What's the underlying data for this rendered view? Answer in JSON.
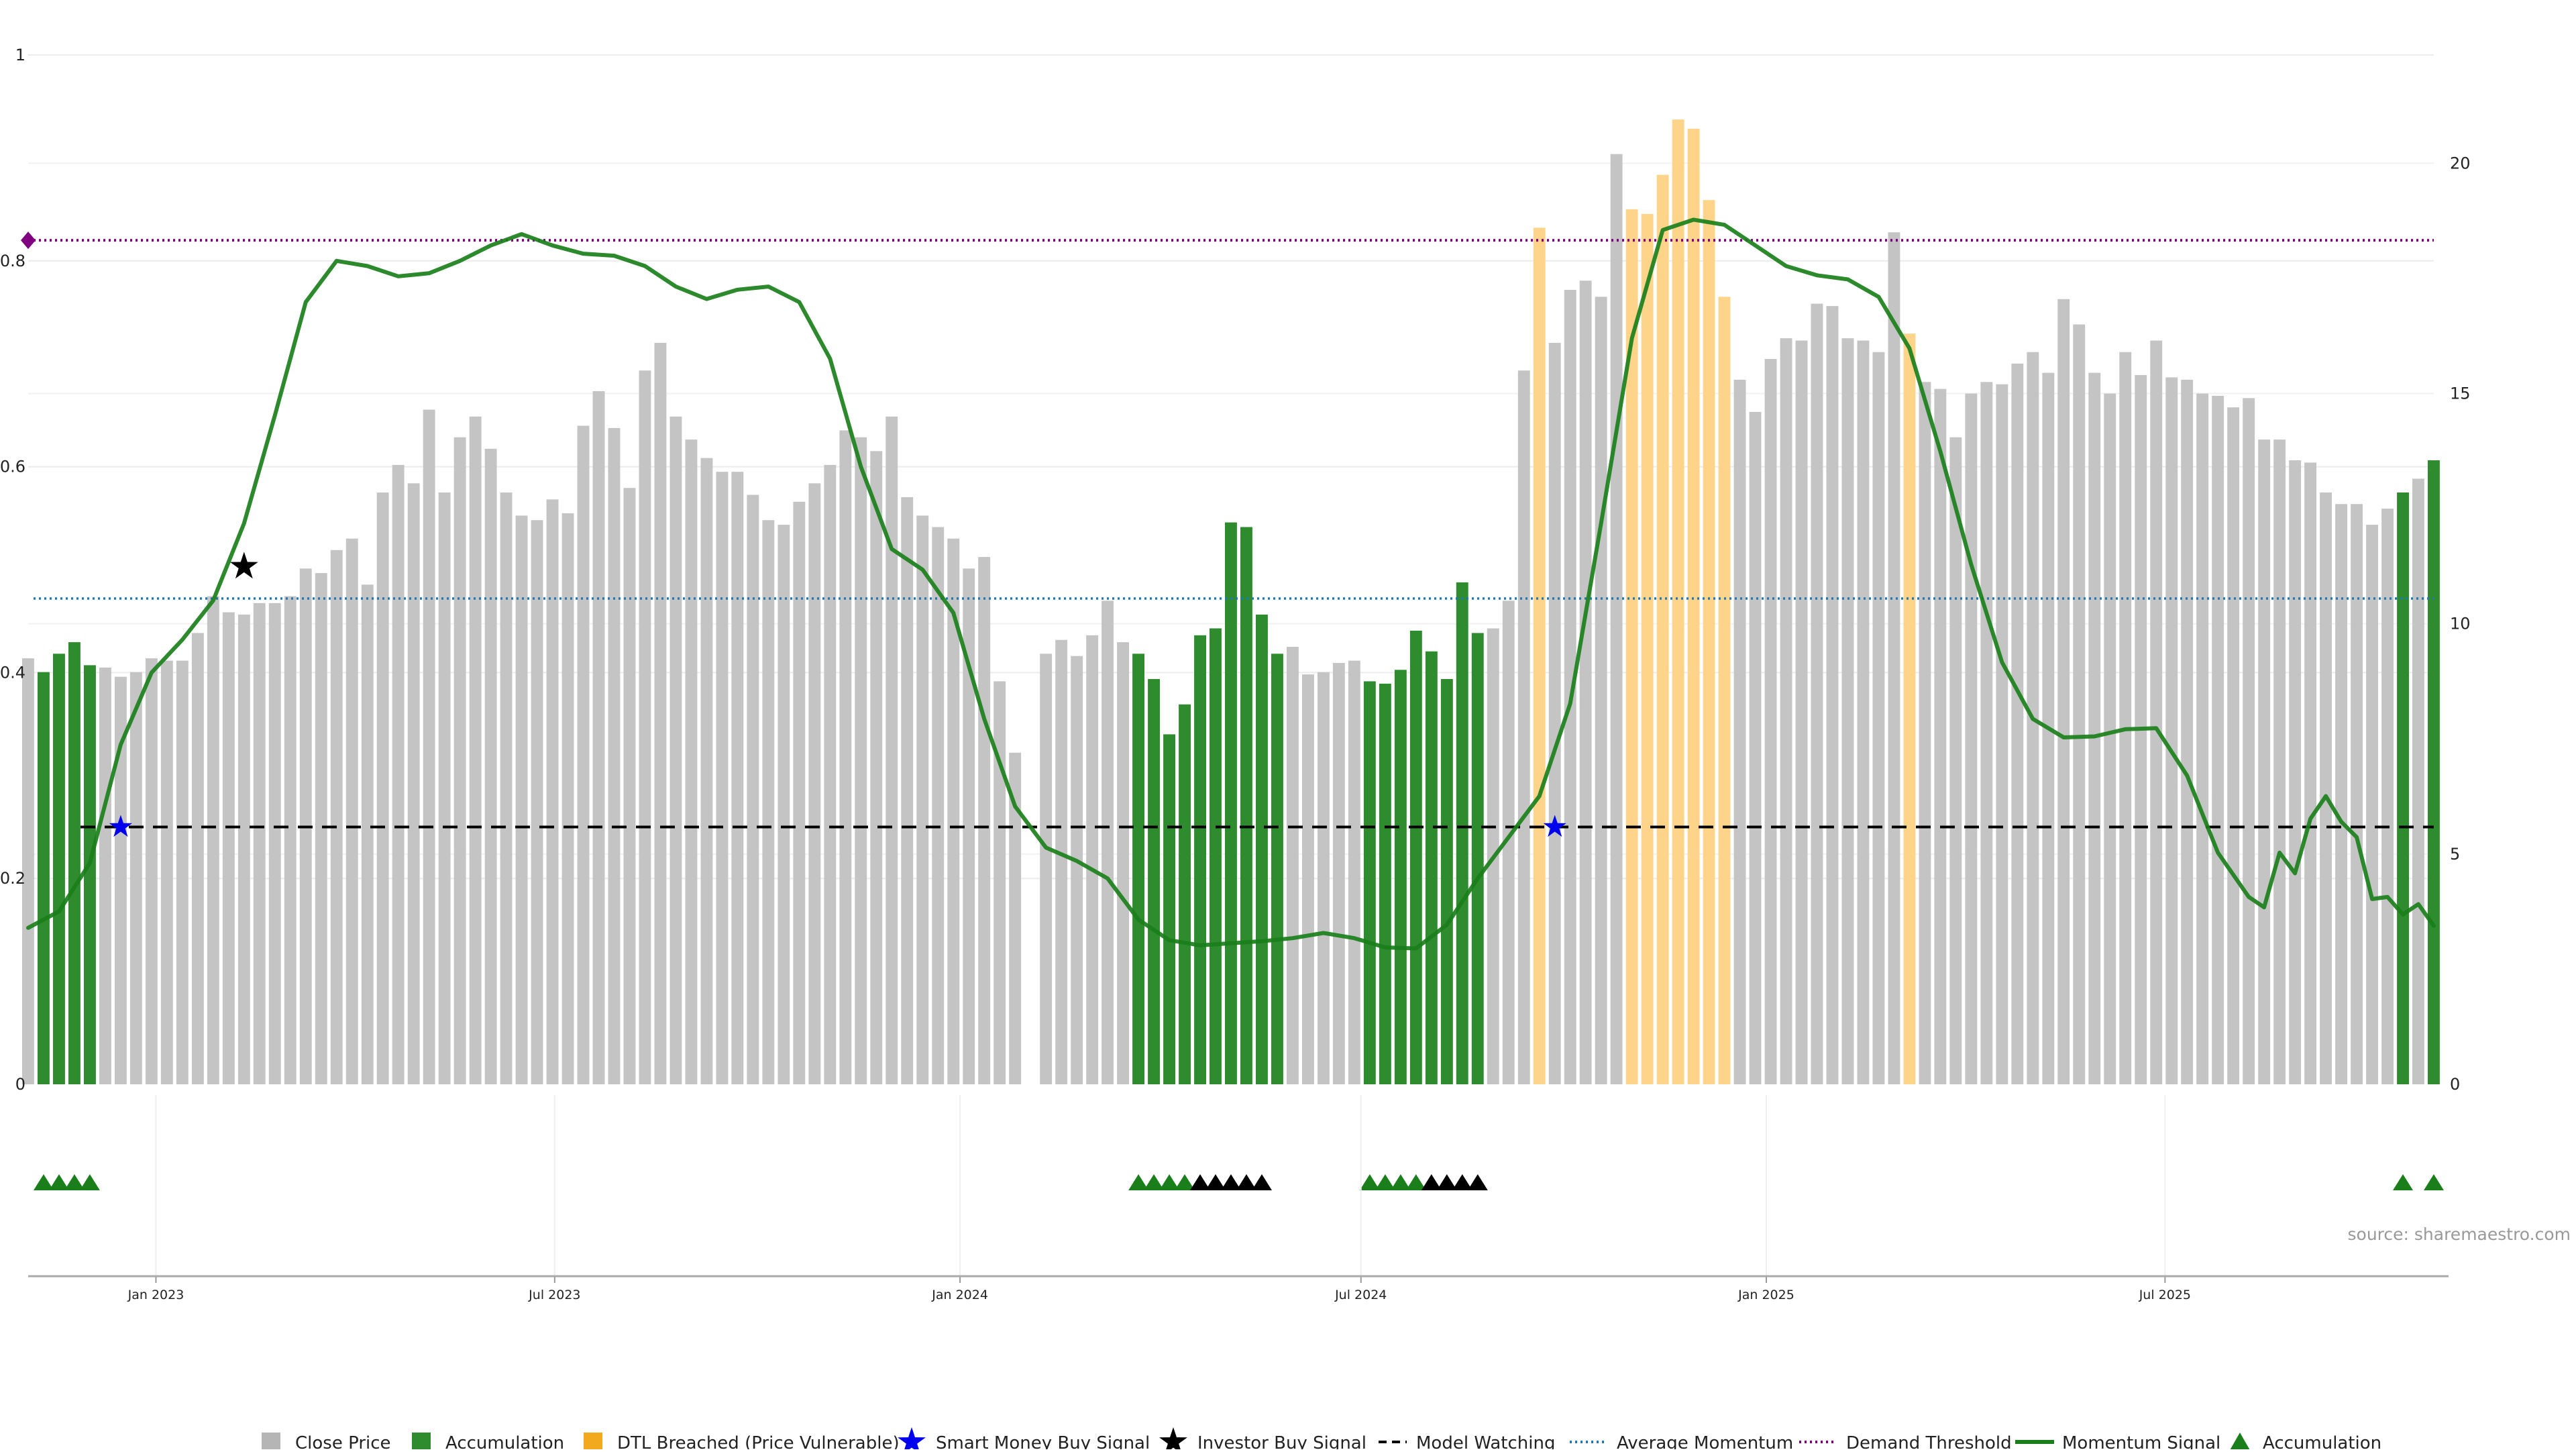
{
  "source": "source: sharemaestro.com",
  "chart_data": {
    "type": "bar",
    "left_axis": {
      "ticks": [
        "0",
        "0.2",
        "0.4",
        "0.6",
        "0.8",
        "1"
      ],
      "values": [
        0,
        0.2,
        0.4,
        0.6,
        0.8,
        1.0
      ],
      "ylim": [
        0,
        1
      ]
    },
    "right_axis": {
      "ticks": [
        "0",
        "5",
        "10",
        "15",
        "20"
      ],
      "values": [
        0,
        5,
        10,
        15,
        20
      ],
      "ylim": [
        0,
        22.35
      ]
    },
    "x_axis": {
      "ticks": [
        "Jan 2023",
        "Jul 2023",
        "Jan 2024",
        "Jul 2024",
        "Jan 2025",
        "Jul 2025"
      ],
      "tick_dates": [
        "2023-01-01",
        "2023-07-01",
        "2024-01-01",
        "2024-07-01",
        "2025-01-01",
        "2025-07-01"
      ],
      "start": "2022-11-04",
      "end": "2025-10-31"
    },
    "bars": {
      "start": "2022-11-04",
      "interval_days": 7,
      "values": [
        9.25,
        8.95,
        9.35,
        9.6,
        9.1,
        9.05,
        8.85,
        8.95,
        9.25,
        9.2,
        9.2,
        9.8,
        10.6,
        10.25,
        10.2,
        10.45,
        10.45,
        10.6,
        11.2,
        11.1,
        11.6,
        11.85,
        10.85,
        12.85,
        13.45,
        13.05,
        14.65,
        12.85,
        14.05,
        14.5,
        13.8,
        12.85,
        12.35,
        12.25,
        12.7,
        12.4,
        14.3,
        15.05,
        14.25,
        12.95,
        15.5,
        16.1,
        14.5,
        14.0,
        13.6,
        13.3,
        13.3,
        12.8,
        12.25,
        12.15,
        12.65,
        13.05,
        13.45,
        14.2,
        14.05,
        13.75,
        14.5,
        12.75,
        12.35,
        12.1,
        11.85,
        11.2,
        11.45,
        8.75,
        7.2,
        0,
        9.35,
        9.65,
        9.3,
        9.75,
        10.5,
        9.6,
        9.35,
        8.8,
        7.6,
        8.25,
        9.75,
        9.9,
        12.2,
        12.1,
        10.2,
        9.35,
        9.5,
        8.9,
        8.95,
        9.15,
        9.2,
        8.75,
        8.7,
        9.0,
        9.85,
        9.4,
        8.8,
        10.9,
        9.8,
        9.9,
        10.5,
        15.5,
        18.6,
        16.1,
        17.25,
        17.45,
        17.1,
        20.2,
        19.0,
        18.9,
        19.75,
        20.95,
        20.75,
        19.2,
        17.1,
        15.3,
        14.6,
        15.75,
        16.2,
        16.15,
        16.95,
        16.9,
        16.2,
        16.15,
        15.9,
        18.5,
        16.3,
        15.25,
        15.1,
        14.05,
        15.0,
        15.25,
        15.2,
        15.65,
        15.9,
        15.45,
        17.05,
        16.5,
        15.45,
        15.0,
        15.9,
        15.4,
        16.15,
        15.35,
        15.3,
        15.0,
        14.95,
        14.7,
        14.9,
        14.0,
        14.0,
        13.55,
        13.5,
        12.85,
        12.6,
        12.6,
        12.15,
        12.5,
        12.85,
        13.15,
        13.55
      ],
      "accumulation_indices": [
        1,
        2,
        3,
        4,
        72,
        73,
        74,
        75,
        76,
        77,
        78,
        79,
        80,
        81,
        87,
        88,
        89,
        90,
        91,
        92,
        93,
        94,
        154,
        156
      ],
      "dtl_breached_indices": [
        98,
        104,
        105,
        106,
        107,
        108,
        109,
        110,
        122
      ],
      "missing_indices": [
        65
      ]
    },
    "momentum_signal": {
      "points": [
        [
          "2022-11-04",
          0.152
        ],
        [
          "2022-11-18",
          0.168
        ],
        [
          "2022-12-02",
          0.215
        ],
        [
          "2022-12-16",
          0.33
        ],
        [
          "2022-12-30",
          0.4
        ],
        [
          "2023-01-13",
          0.432
        ],
        [
          "2023-01-27",
          0.47
        ],
        [
          "2023-02-10",
          0.545
        ],
        [
          "2023-02-24",
          0.65
        ],
        [
          "2023-03-10",
          0.76
        ],
        [
          "2023-03-24",
          0.8
        ],
        [
          "2023-04-07",
          0.795
        ],
        [
          "2023-04-21",
          0.785
        ],
        [
          "2023-05-05",
          0.788
        ],
        [
          "2023-05-19",
          0.8
        ],
        [
          "2023-06-02",
          0.815
        ],
        [
          "2023-06-16",
          0.826
        ],
        [
          "2023-06-30",
          0.815
        ],
        [
          "2023-07-14",
          0.807
        ],
        [
          "2023-07-28",
          0.805
        ],
        [
          "2023-08-11",
          0.795
        ],
        [
          "2023-08-25",
          0.775
        ],
        [
          "2023-09-08",
          0.763
        ],
        [
          "2023-09-22",
          0.772
        ],
        [
          "2023-10-06",
          0.775
        ],
        [
          "2023-10-20",
          0.76
        ],
        [
          "2023-11-03",
          0.705
        ],
        [
          "2023-11-17",
          0.6
        ],
        [
          "2023-12-01",
          0.52
        ],
        [
          "2023-12-15",
          0.5
        ],
        [
          "2023-12-29",
          0.458
        ],
        [
          "2024-01-12",
          0.355
        ],
        [
          "2024-01-26",
          0.27
        ],
        [
          "2024-02-09",
          0.23
        ],
        [
          "2024-02-23",
          0.217
        ],
        [
          "2024-03-08",
          0.2
        ],
        [
          "2024-03-22",
          0.16
        ],
        [
          "2024-04-05",
          0.14
        ],
        [
          "2024-04-19",
          0.135
        ],
        [
          "2024-05-03",
          0.137
        ],
        [
          "2024-05-17",
          0.139
        ],
        [
          "2024-05-31",
          0.142
        ],
        [
          "2024-06-14",
          0.147
        ],
        [
          "2024-06-28",
          0.142
        ],
        [
          "2024-07-12",
          0.133
        ],
        [
          "2024-07-26",
          0.132
        ],
        [
          "2024-08-09",
          0.155
        ],
        [
          "2024-08-23",
          0.2
        ],
        [
          "2024-09-06",
          0.24
        ],
        [
          "2024-09-20",
          0.28
        ],
        [
          "2024-10-04",
          0.37
        ],
        [
          "2024-10-18",
          0.545
        ],
        [
          "2024-11-01",
          0.725
        ],
        [
          "2024-11-15",
          0.83
        ],
        [
          "2024-11-29",
          0.84
        ],
        [
          "2024-12-13",
          0.835
        ],
        [
          "2024-12-27",
          0.815
        ],
        [
          "2025-01-10",
          0.795
        ],
        [
          "2025-01-24",
          0.786
        ],
        [
          "2025-02-07",
          0.782
        ],
        [
          "2025-02-21",
          0.765
        ],
        [
          "2025-03-07",
          0.715
        ],
        [
          "2025-03-21",
          0.615
        ],
        [
          "2025-04-04",
          0.505
        ],
        [
          "2025-04-18",
          0.41
        ],
        [
          "2025-05-02",
          0.355
        ],
        [
          "2025-05-16",
          0.337
        ],
        [
          "2025-05-30",
          0.338
        ],
        [
          "2025-06-13",
          0.345
        ],
        [
          "2025-06-27",
          0.346
        ],
        [
          "2025-07-11",
          0.3
        ],
        [
          "2025-07-25",
          0.225
        ],
        [
          "2025-08-08",
          0.182
        ],
        [
          "2025-08-15",
          0.172
        ],
        [
          "2025-08-22",
          0.225
        ],
        [
          "2025-08-29",
          0.205
        ],
        [
          "2025-09-05",
          0.258
        ],
        [
          "2025-09-12",
          0.28
        ],
        [
          "2025-09-19",
          0.255
        ],
        [
          "2025-09-26",
          0.24
        ],
        [
          "2025-10-03",
          0.18
        ],
        [
          "2025-10-10",
          0.182
        ],
        [
          "2025-10-17",
          0.165
        ],
        [
          "2025-10-24",
          0.175
        ],
        [
          "2025-10-31",
          0.154
        ]
      ],
      "color": "#1a7f1a"
    },
    "model_watching": {
      "value": 0.25,
      "color": "#000000"
    },
    "average_momentum": {
      "value": 0.472,
      "color": "#1f77b4"
    },
    "demand_threshold": {
      "value": 0.82,
      "color": "#800080"
    },
    "smart_money_buy_signals": [
      [
        "2022-12-16",
        0.25
      ],
      [
        "2024-09-27",
        0.25
      ]
    ],
    "investor_buy_signals": [
      [
        "2023-02-10",
        0.503
      ]
    ],
    "accumulation_markers": {
      "green_indices": [
        1,
        2,
        3,
        4,
        72,
        73,
        74,
        75,
        87,
        88,
        89,
        90,
        154,
        156
      ],
      "black_indices": [
        76,
        77,
        78,
        79,
        80,
        91,
        92,
        93,
        94
      ]
    },
    "colors": {
      "close": "#c4c4c4",
      "accumulation": "#2e8b2e",
      "dtl": "#fdd48a",
      "dtl_legend": "#f2a91d"
    }
  },
  "legend": [
    {
      "label": "Close Price",
      "icon": "square",
      "color": "#b5b5b5"
    },
    {
      "label": "Accumulation",
      "icon": "square",
      "color": "#2e8b2e"
    },
    {
      "label": "DTL Breached (Price Vulnerable)",
      "icon": "square",
      "color": "#f2a91d"
    },
    {
      "label": "Smart Money Buy Signal",
      "icon": "star",
      "color": "#0000ee"
    },
    {
      "label": "Investor Buy Signal",
      "icon": "star",
      "color": "#000000"
    },
    {
      "label": "Model Watching",
      "icon": "dash",
      "color": "#000000"
    },
    {
      "label": "Average Momentum",
      "icon": "dot-blue",
      "color": "#1f77b4"
    },
    {
      "label": "Demand Threshold",
      "icon": "dot-purple",
      "color": "#800080"
    },
    {
      "label": "Momentum Signal",
      "icon": "line",
      "color": "#1a7f1a"
    },
    {
      "label": "Accumulation",
      "icon": "triangle",
      "color": "#1a7f1a"
    }
  ]
}
